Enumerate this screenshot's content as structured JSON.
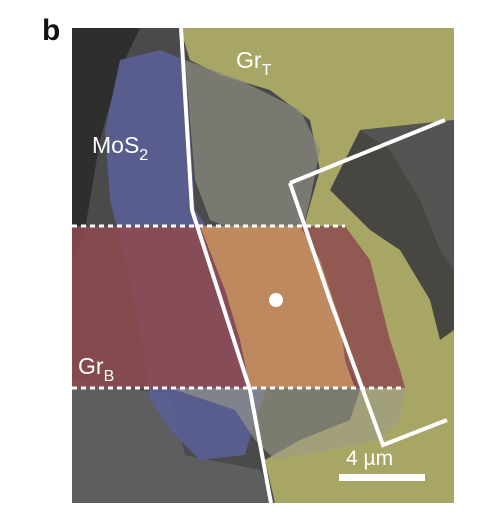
{
  "panel_letter": "b",
  "labels": {
    "top_graphene_main": "Gr",
    "top_graphene_sub": "T",
    "mos2_main": "MoS",
    "mos2_sub": "2",
    "bottom_graphene_main": "Gr",
    "bottom_graphene_sub": "B",
    "scale_bar": "4 µm"
  },
  "colors": {
    "substrate": "#4a4a4a",
    "top_graphene_tint": "#b8b66a",
    "mos2_tint": "#5a5f96",
    "bottom_graphene_tint": "#8e4a4f",
    "overlap_tint": "#c49060",
    "annotation": "#ffffff"
  }
}
